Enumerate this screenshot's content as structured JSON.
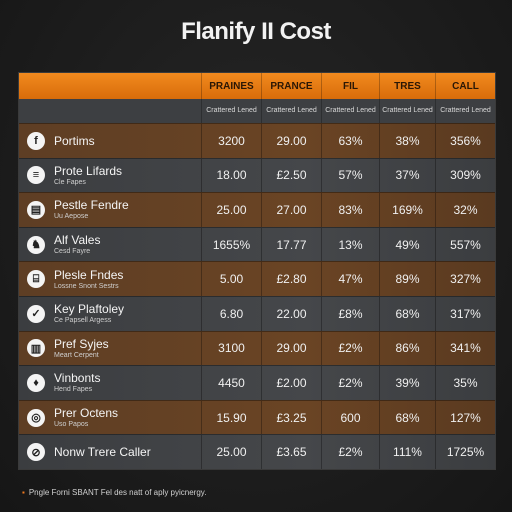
{
  "title": "Flanify II Cost",
  "columns": [
    {
      "header": "PRAINES",
      "sub": "Crattered Lened"
    },
    {
      "header": "PRANCE",
      "sub": "Crattered Lened"
    },
    {
      "header": "FIL",
      "sub": "Crattered Lened"
    },
    {
      "header": "TRES",
      "sub": "Crattered Lened"
    },
    {
      "header": "CALL",
      "sub": "Crattered Lened"
    }
  ],
  "rows": [
    {
      "icon": "f",
      "icon_name": "facebook-icon",
      "name": "Portims",
      "sub": "",
      "values": [
        "3200",
        "29.00",
        "63%",
        "38%",
        "356%"
      ]
    },
    {
      "icon": "≡",
      "icon_name": "list-icon",
      "name": "Prote Lifards",
      "sub": "Cle Fapes",
      "values": [
        "18.00",
        "£2.50",
        "57%",
        "37%",
        "309%"
      ]
    },
    {
      "icon": "▤",
      "icon_name": "document-icon",
      "name": "Pestle Fendre",
      "sub": "Uu Aepose",
      "values": [
        "25.00",
        "27.00",
        "83%",
        "169%",
        "32%"
      ]
    },
    {
      "icon": "♞",
      "icon_name": "horse-icon",
      "name": "Alf Vales",
      "sub": "Cesd Fayre",
      "values": [
        "1655%",
        "17.77",
        "13%",
        "49%",
        "557%"
      ]
    },
    {
      "icon": "⌸",
      "icon_name": "building-icon",
      "name": "Plesle Fndes",
      "sub": "Lossne Snont Sestrs",
      "values": [
        "5.00",
        "£2.80",
        "47%",
        "89%",
        "327%"
      ]
    },
    {
      "icon": "✓",
      "icon_name": "check-icon",
      "name": "Key Plaftoley",
      "sub": "Ce Papsell Argess",
      "values": [
        "6.80",
        "22.00",
        "£8%",
        "68%",
        "317%"
      ]
    },
    {
      "icon": "▥",
      "icon_name": "calendar-icon",
      "name": "Pref Syjes",
      "sub": "Meart Cerpent",
      "values": [
        "3100",
        "29.00",
        "£2%",
        "86%",
        "341%"
      ]
    },
    {
      "icon": "♦",
      "icon_name": "wine-icon",
      "name": "Vinbonts",
      "sub": "Hend Fapes",
      "values": [
        "4450",
        "£2.00",
        "£2%",
        "39%",
        "35%"
      ]
    },
    {
      "icon": "◎",
      "icon_name": "target-icon",
      "name": "Prer Octens",
      "sub": "Uso Papos",
      "values": [
        "15.90",
        "£3.25",
        "600",
        "68%",
        "127%"
      ]
    },
    {
      "icon": "⊘",
      "icon_name": "pause-icon",
      "name": "Nonw Trere Caller",
      "sub": "",
      "values": [
        "25.00",
        "£3.65",
        "£2%",
        "111%",
        "1725%"
      ]
    }
  ],
  "footnote": "Pngle Forni SBANT Fel des natt of aply pyicnergy.",
  "colors": {
    "accent": "#f28a1e",
    "row_brown": "#6a4424",
    "row_gray": "#45474a",
    "subheader": "#3d3f42"
  }
}
